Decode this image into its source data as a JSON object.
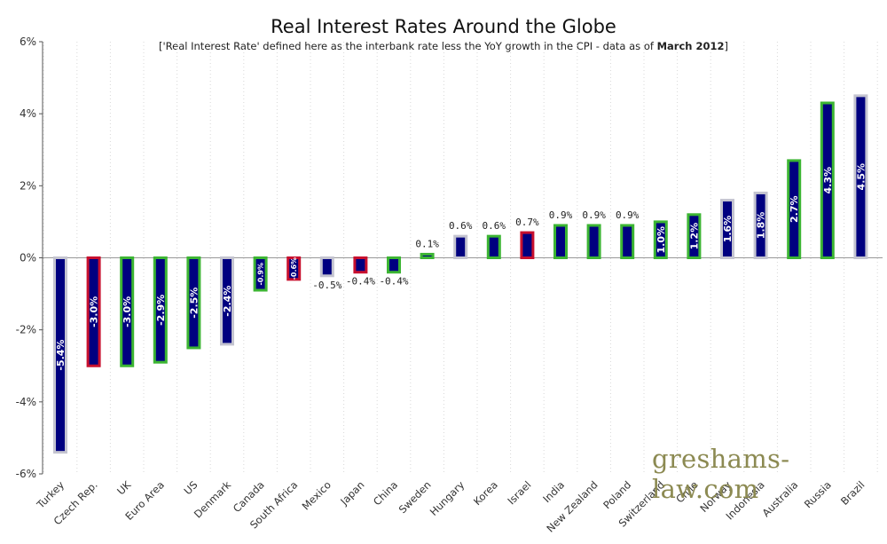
{
  "chart_data": {
    "type": "bar",
    "title": "Real Interest Rates Around the Globe",
    "subtitle_prefix": "['Real Interest Rate' defined here as the interbank rate less the YoY growth in the CPI - data as of ",
    "subtitle_bold": "March 2012",
    "subtitle_suffix": "]",
    "xlabel": "",
    "ylabel": "",
    "ylim": [
      -6,
      6
    ],
    "yticks": [
      "6%",
      "4%",
      "2%",
      "0%",
      "-2%",
      "-4%",
      "-6%"
    ],
    "ytick_values": [
      6,
      4,
      2,
      0,
      -2,
      -4,
      -6
    ],
    "grid": true,
    "categories": [
      "Turkey",
      "Czech Rep.",
      "UK",
      "Euro Area",
      "US",
      "Denmark",
      "Canada",
      "South Africa",
      "Mexico",
      "Japan",
      "China",
      "Sweden",
      "Hungary",
      "Korea",
      "Israel",
      "India",
      "New Zealand",
      "Poland",
      "Switzerland",
      "Chile",
      "Norway",
      "Indonesia",
      "Australia",
      "Russia",
      "Brazil"
    ],
    "values": [
      -5.4,
      -3.0,
      -3.0,
      -2.9,
      -2.5,
      -2.4,
      -0.9,
      -0.6,
      -0.5,
      -0.4,
      -0.4,
      0.1,
      0.6,
      0.6,
      0.7,
      0.9,
      0.9,
      0.9,
      1.0,
      1.2,
      1.6,
      1.8,
      2.7,
      4.3,
      4.5
    ],
    "labels": [
      "-5.4%",
      "-3.0%",
      "-3.0%",
      "-2.9%",
      "-2.5%",
      "-2.4%",
      "-0.9%",
      "-0.6%",
      "-0.5%",
      "-0.4%",
      "-0.4%",
      "0.1%",
      "0.6%",
      "0.6%",
      "0.7%",
      "0.9%",
      "0.9%",
      "0.9%",
      "1.0%",
      "1.2%",
      "1.6%",
      "1.8%",
      "2.7%",
      "4.3%",
      "4.5%"
    ],
    "border_groups": [
      "grey",
      "red",
      "green",
      "green",
      "green",
      "grey",
      "green",
      "red",
      "grey",
      "red",
      "green",
      "green",
      "grey",
      "green",
      "red",
      "green",
      "green",
      "green",
      "green",
      "green",
      "grey",
      "grey",
      "green",
      "green",
      "grey"
    ],
    "colors": {
      "fill": "#000080",
      "grey": "#c4c4d0",
      "red": "#c8102e",
      "green": "#3cb533"
    }
  },
  "watermark": "greshams-law.com"
}
